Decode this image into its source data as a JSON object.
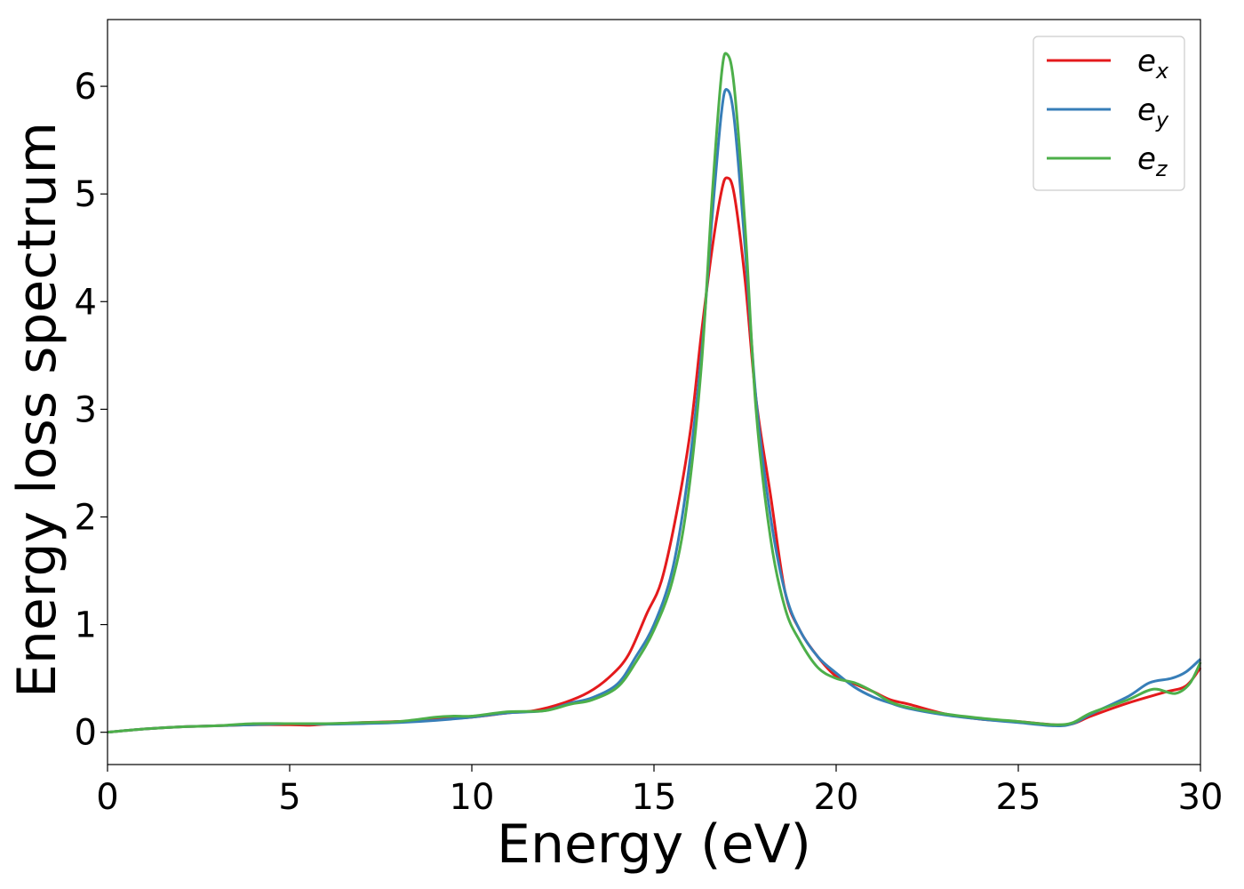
{
  "chart_data": {
    "type": "line",
    "title": "",
    "xlabel": "Energy (eV)",
    "ylabel": "Energy loss spectrum",
    "xlim": [
      0,
      30
    ],
    "ylim": [
      -0.3,
      6.62
    ],
    "xticks": [
      0,
      5,
      10,
      15,
      20,
      25,
      30
    ],
    "yticks": [
      0,
      1,
      2,
      3,
      4,
      5,
      6
    ],
    "grid": false,
    "legend_position": "top-right",
    "series": [
      {
        "name_base": "e",
        "name_sub": "x",
        "color": "#e41a1c",
        "points": [
          [
            0,
            0.0
          ],
          [
            1,
            0.03
          ],
          [
            2,
            0.05
          ],
          [
            3,
            0.06
          ],
          [
            4,
            0.07
          ],
          [
            5,
            0.07
          ],
          [
            5.5,
            0.065
          ],
          [
            6,
            0.075
          ],
          [
            7,
            0.09
          ],
          [
            8,
            0.1
          ],
          [
            9,
            0.12
          ],
          [
            10,
            0.14
          ],
          [
            11,
            0.18
          ],
          [
            11.7,
            0.2
          ],
          [
            12.5,
            0.27
          ],
          [
            13.2,
            0.37
          ],
          [
            13.8,
            0.52
          ],
          [
            14.3,
            0.72
          ],
          [
            14.8,
            1.1
          ],
          [
            15.2,
            1.4
          ],
          [
            15.6,
            2.0
          ],
          [
            16.0,
            2.8
          ],
          [
            16.3,
            3.7
          ],
          [
            16.6,
            4.5
          ],
          [
            16.85,
            5.02
          ],
          [
            17.0,
            5.15
          ],
          [
            17.2,
            5.0
          ],
          [
            17.5,
            4.2
          ],
          [
            17.8,
            3.1
          ],
          [
            18.2,
            2.2
          ],
          [
            18.6,
            1.3
          ],
          [
            19.0,
            0.95
          ],
          [
            19.5,
            0.7
          ],
          [
            20.0,
            0.52
          ],
          [
            20.5,
            0.45
          ],
          [
            21.0,
            0.38
          ],
          [
            21.5,
            0.3
          ],
          [
            22.0,
            0.26
          ],
          [
            23.0,
            0.17
          ],
          [
            24.0,
            0.12
          ],
          [
            25.0,
            0.1
          ],
          [
            26.0,
            0.07
          ],
          [
            26.5,
            0.08
          ],
          [
            27.0,
            0.15
          ],
          [
            28.0,
            0.27
          ],
          [
            29.0,
            0.37
          ],
          [
            29.6,
            0.43
          ],
          [
            30.0,
            0.6
          ]
        ]
      },
      {
        "name_base": "e",
        "name_sub": "y",
        "color": "#377eb8",
        "points": [
          [
            0,
            0.0
          ],
          [
            1,
            0.03
          ],
          [
            2,
            0.05
          ],
          [
            3,
            0.06
          ],
          [
            4,
            0.07
          ],
          [
            5,
            0.08
          ],
          [
            6,
            0.075
          ],
          [
            7,
            0.08
          ],
          [
            8,
            0.09
          ],
          [
            9,
            0.11
          ],
          [
            10,
            0.14
          ],
          [
            11,
            0.18
          ],
          [
            12,
            0.2
          ],
          [
            12.7,
            0.27
          ],
          [
            13.3,
            0.32
          ],
          [
            14.0,
            0.45
          ],
          [
            14.5,
            0.7
          ],
          [
            15.0,
            1.0
          ],
          [
            15.5,
            1.5
          ],
          [
            15.9,
            2.3
          ],
          [
            16.3,
            3.5
          ],
          [
            16.6,
            4.8
          ],
          [
            16.85,
            5.75
          ],
          [
            17.0,
            5.97
          ],
          [
            17.2,
            5.7
          ],
          [
            17.5,
            4.5
          ],
          [
            17.8,
            3.1
          ],
          [
            18.2,
            2.0
          ],
          [
            18.6,
            1.3
          ],
          [
            19.0,
            0.95
          ],
          [
            19.5,
            0.7
          ],
          [
            20.0,
            0.55
          ],
          [
            20.5,
            0.42
          ],
          [
            21.0,
            0.33
          ],
          [
            21.5,
            0.27
          ],
          [
            22.0,
            0.22
          ],
          [
            23.0,
            0.16
          ],
          [
            24.0,
            0.12
          ],
          [
            25.0,
            0.09
          ],
          [
            26.0,
            0.06
          ],
          [
            26.5,
            0.08
          ],
          [
            27.0,
            0.17
          ],
          [
            28.0,
            0.33
          ],
          [
            28.6,
            0.46
          ],
          [
            29.2,
            0.5
          ],
          [
            29.6,
            0.56
          ],
          [
            30.0,
            0.68
          ]
        ]
      },
      {
        "name_base": "e",
        "name_sub": "z",
        "color": "#4daf4a",
        "points": [
          [
            0,
            0.0
          ],
          [
            1,
            0.03
          ],
          [
            2,
            0.05
          ],
          [
            3,
            0.06
          ],
          [
            4,
            0.08
          ],
          [
            5,
            0.08
          ],
          [
            6,
            0.08
          ],
          [
            7,
            0.09
          ],
          [
            8,
            0.1
          ],
          [
            9,
            0.14
          ],
          [
            9.5,
            0.15
          ],
          [
            10,
            0.15
          ],
          [
            11,
            0.19
          ],
          [
            12,
            0.2
          ],
          [
            12.7,
            0.26
          ],
          [
            13.3,
            0.3
          ],
          [
            14.0,
            0.42
          ],
          [
            14.5,
            0.65
          ],
          [
            15.0,
            0.95
          ],
          [
            15.5,
            1.4
          ],
          [
            15.9,
            2.1
          ],
          [
            16.3,
            3.4
          ],
          [
            16.6,
            5.0
          ],
          [
            16.85,
            6.1
          ],
          [
            17.0,
            6.3
          ],
          [
            17.2,
            6.0
          ],
          [
            17.5,
            4.7
          ],
          [
            17.8,
            3.0
          ],
          [
            18.2,
            1.8
          ],
          [
            18.6,
            1.15
          ],
          [
            19.0,
            0.85
          ],
          [
            19.5,
            0.6
          ],
          [
            20.0,
            0.5
          ],
          [
            20.5,
            0.46
          ],
          [
            21.0,
            0.38
          ],
          [
            21.5,
            0.28
          ],
          [
            22.0,
            0.23
          ],
          [
            23.0,
            0.17
          ],
          [
            24.0,
            0.13
          ],
          [
            25.0,
            0.1
          ],
          [
            26.0,
            0.07
          ],
          [
            26.5,
            0.09
          ],
          [
            27.0,
            0.18
          ],
          [
            28.0,
            0.3
          ],
          [
            28.7,
            0.4
          ],
          [
            29.3,
            0.36
          ],
          [
            29.7,
            0.45
          ],
          [
            30.0,
            0.65
          ]
        ]
      }
    ]
  }
}
